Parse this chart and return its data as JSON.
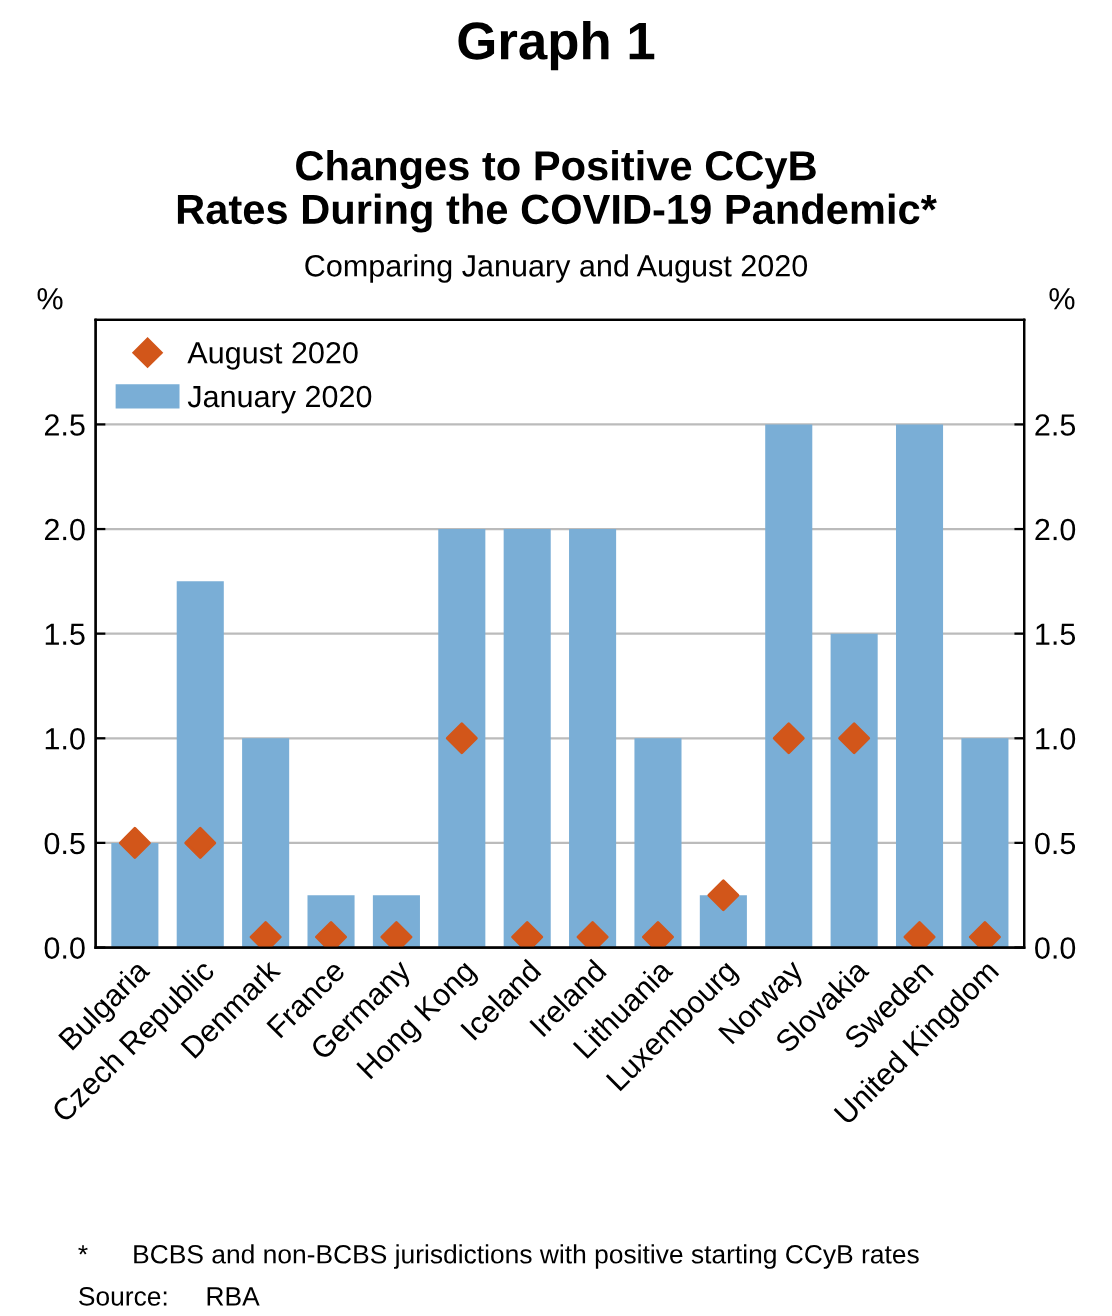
{
  "chart_data": {
    "type": "bar",
    "title": "Changes to Positive CCyB\nRates During the COVID-19 Pandemic*",
    "subtitle": "Comparing January and August 2020",
    "annotations": [
      "Graph 1",
      "*      BCBS and non-BCBS jurisdictions with positive starting CCyB rates",
      "Source:     RBA"
    ],
    "ylabel": "%",
    "y2label": "%",
    "categories": [
      "Bulgaria",
      "Czech Republic",
      "Denmark",
      "France",
      "Germany",
      "Hong Kong",
      "Iceland",
      "Ireland",
      "Lithuania",
      "Luxembourg",
      "Norway",
      "Slovakia",
      "Sweden",
      "United Kingdom"
    ],
    "series": [
      {
        "name": "January 2020",
        "color": "#7aaed6",
        "values": [
          0.5,
          1.75,
          1.0,
          0.25,
          0.25,
          2.0,
          2.0,
          2.0,
          1.0,
          0.25,
          2.5,
          1.5,
          2.5,
          1.0
        ]
      },
      {
        "name": "August 2020",
        "type": "scatter",
        "marker": "diamond",
        "color": "#d2561a",
        "values": [
          0.5,
          0.5,
          0.05,
          0.05,
          0.05,
          1.0,
          0.05,
          0.05,
          0.05,
          0.25,
          1.0,
          1.0,
          0.05,
          0.05
        ]
      }
    ],
    "ylim": [
      0,
      3
    ],
    "yticks": [
      {
        "value": 0,
        "label": "0.0"
      },
      0.5,
      {
        "value": 1,
        "label": "1.0"
      },
      1.5,
      {
        "value": 2,
        "label": "2.0"
      },
      2.5
    ],
    "y2lim": [
      0,
      3
    ],
    "y2ticks": [
      {
        "value": 0,
        "label": "0.0"
      },
      0.5,
      {
        "value": 1,
        "label": "1.0"
      },
      1.5,
      {
        "value": 2,
        "label": "2.0"
      },
      2.5
    ],
    "grid": "y",
    "legend": "top left"
  }
}
